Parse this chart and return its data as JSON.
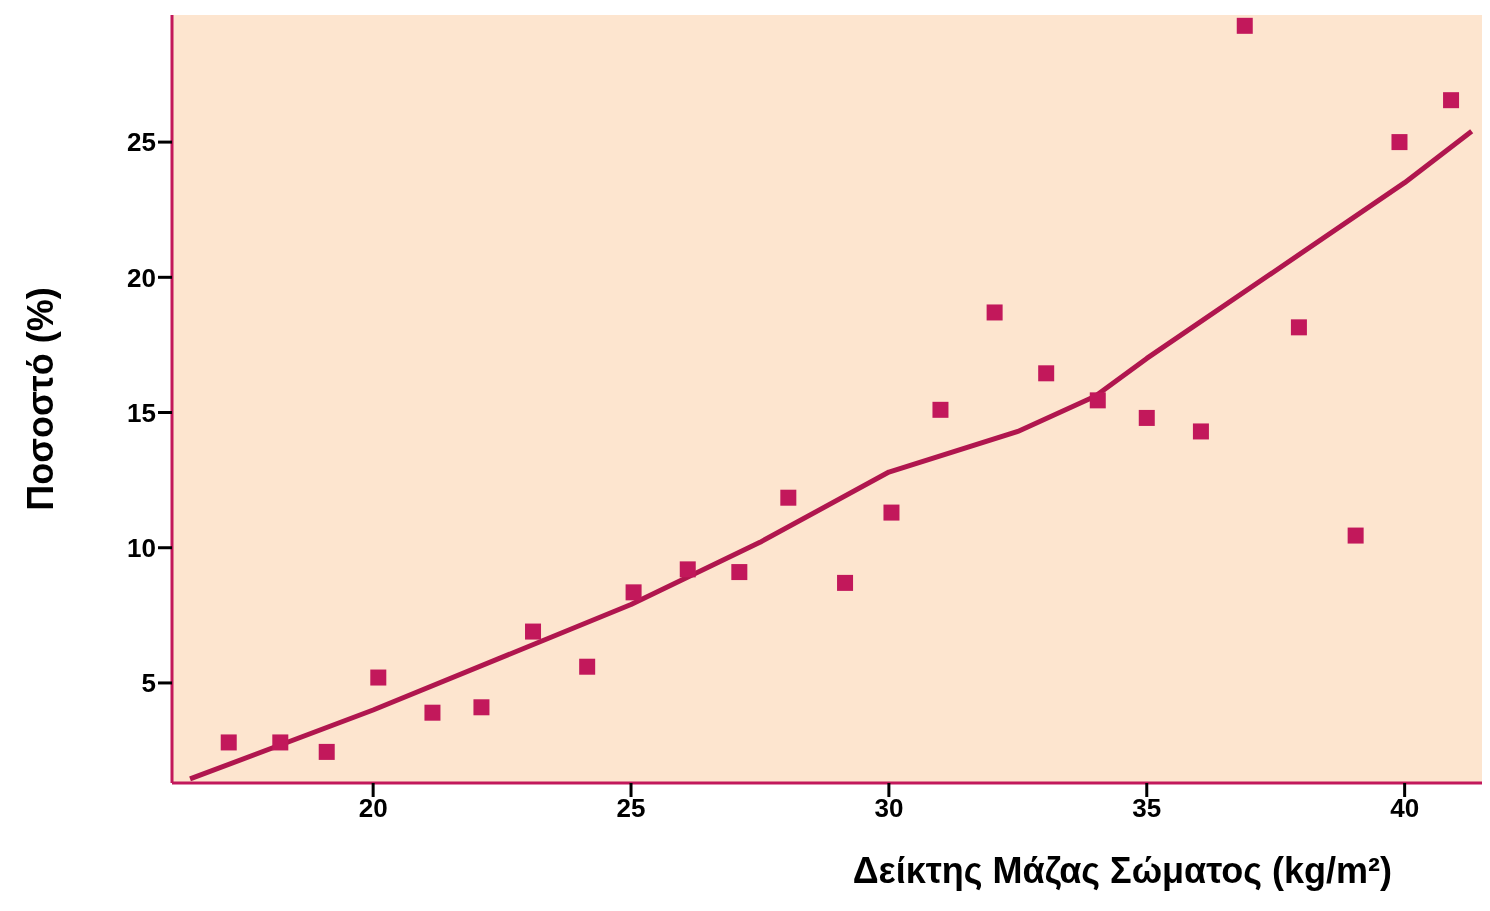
{
  "chart_data": {
    "type": "scatter",
    "xlabel": "Δείκτης Μάζας Σώματος (kg/m²)",
    "ylabel": "Ποσοστό (%)",
    "xlim": [
      16.1,
      41.5
    ],
    "ylim": [
      1.3,
      29.7
    ],
    "xticks": [
      20,
      25,
      30,
      35,
      40
    ],
    "yticks": [
      5,
      10,
      15,
      20,
      25
    ],
    "grid": false,
    "legend": false,
    "series": [
      {
        "type": "scatter",
        "color": "#c2185b",
        "marker": "square",
        "x": [
          17.2,
          18.2,
          19.1,
          20.1,
          21.15,
          22.1,
          23.1,
          24.15,
          25.05,
          26.1,
          27.1,
          28.05,
          29.15,
          30.05,
          31.0,
          32.05,
          33.05,
          34.05,
          35.0,
          36.05,
          36.9,
          37.95,
          39.05,
          39.9,
          40.9
        ],
        "values": [
          2.8,
          2.8,
          2.45,
          5.2,
          3.9,
          4.1,
          6.9,
          5.6,
          8.35,
          9.2,
          9.1,
          11.85,
          8.7,
          11.3,
          15.1,
          18.7,
          16.45,
          15.45,
          14.8,
          14.3,
          29.3,
          18.15,
          10.45,
          25.0,
          26.55
        ]
      },
      {
        "type": "line",
        "color": "#b0164e",
        "marker": "none",
        "line_style": "solid",
        "x": [
          16.45,
          20,
          25,
          27.5,
          30,
          32.5,
          34,
          35,
          40,
          41.3
        ],
        "values": [
          1.45,
          4.0,
          7.9,
          10.2,
          12.8,
          14.3,
          15.6,
          17.0,
          23.5,
          25.4
        ]
      }
    ]
  }
}
